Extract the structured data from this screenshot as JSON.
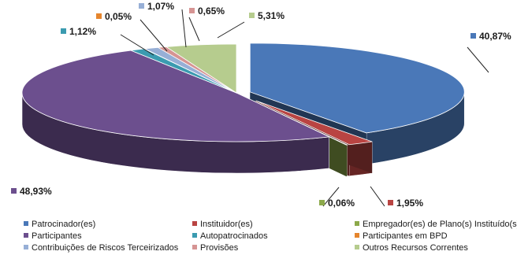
{
  "chart_data": {
    "type": "pie",
    "title": "",
    "series": [
      {
        "name": "Patrocinador(es)",
        "value": 40.87,
        "label": "40,87%",
        "color": "#4A78B8"
      },
      {
        "name": "Instituidor(es)",
        "value": 1.95,
        "label": "1,95%",
        "color": "#B94442"
      },
      {
        "name": "Empregador(es) de Plano(s) Instituído(s)",
        "value": 0.06,
        "label": "0,06%",
        "color": "#8CA94A"
      },
      {
        "name": "Participantes",
        "value": 48.93,
        "label": "48,93%",
        "color": "#6C4F8E"
      },
      {
        "name": "Autopatrocinados",
        "value": 1.12,
        "label": "1,12%",
        "color": "#3B9BB0"
      },
      {
        "name": "Participantes em BPD",
        "value": 0.05,
        "label": "0,05%",
        "color": "#E5852D"
      },
      {
        "name": "Contribuições de Riscos Terceirizados",
        "value": 1.07,
        "label": "1,07%",
        "color": "#97AFD6"
      },
      {
        "name": "Provisões",
        "value": 0.65,
        "label": "0,65%",
        "color": "#D69493"
      },
      {
        "name": "Outros Recursos Correntes",
        "value": 5.31,
        "label": "5,31%",
        "color": "#B6CC8E"
      }
    ],
    "legend_position": "bottom"
  }
}
